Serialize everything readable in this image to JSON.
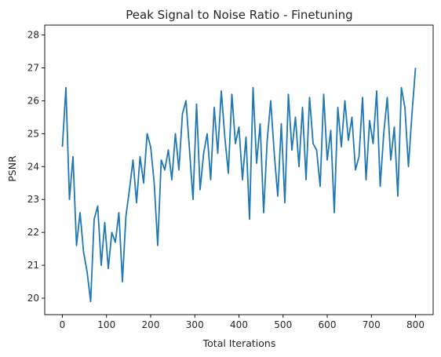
{
  "chart_data": {
    "type": "line",
    "title": "Peak Signal to Noise Ratio - Finetuning",
    "xlabel": "Total Iterations",
    "ylabel": "PSNR",
    "xlim": [
      -40,
      840
    ],
    "ylim": [
      19.5,
      28.3
    ],
    "xticks": [
      0,
      100,
      200,
      300,
      400,
      500,
      600,
      700,
      800
    ],
    "yticks": [
      20,
      21,
      22,
      23,
      24,
      25,
      26,
      27,
      28
    ],
    "grid": false,
    "line_color": "#1f77b4",
    "series": [
      {
        "x": [
          0,
          8,
          16,
          24,
          32,
          40,
          48,
          56,
          64,
          72,
          80,
          88,
          96,
          104,
          112,
          120,
          128,
          136,
          144,
          152,
          160,
          168,
          176,
          184,
          192,
          200,
          208,
          216,
          224,
          232,
          240,
          248,
          256,
          264,
          272,
          280,
          288,
          296,
          304,
          312,
          320,
          328,
          336,
          344,
          352,
          360,
          368,
          376,
          384,
          392,
          400,
          408,
          416,
          424,
          432,
          440,
          448,
          456,
          464,
          472,
          480,
          488,
          496,
          504,
          512,
          520,
          528,
          536,
          544,
          552,
          560,
          568,
          576,
          584,
          592,
          600,
          608,
          616,
          624,
          632,
          640,
          648,
          656,
          664,
          672,
          680,
          688,
          696,
          704,
          712,
          720,
          728,
          736,
          744,
          752,
          760,
          768,
          776,
          784,
          792,
          800
        ],
        "y": [
          24.6,
          26.4,
          23.0,
          24.3,
          21.6,
          22.6,
          21.4,
          20.8,
          19.9,
          22.4,
          22.8,
          21.0,
          22.3,
          20.9,
          22.0,
          21.7,
          22.6,
          20.5,
          22.5,
          23.3,
          24.2,
          22.9,
          24.3,
          23.5,
          25.0,
          24.6,
          23.5,
          21.6,
          24.2,
          23.9,
          24.5,
          23.6,
          25.0,
          23.9,
          25.6,
          26.0,
          24.5,
          23.0,
          25.9,
          23.3,
          24.4,
          25.0,
          23.6,
          25.8,
          24.4,
          26.3,
          24.9,
          23.8,
          26.2,
          24.7,
          25.2,
          23.6,
          24.9,
          22.4,
          26.4,
          24.1,
          25.3,
          22.6,
          24.8,
          26.0,
          24.4,
          23.1,
          25.3,
          22.9,
          26.2,
          24.5,
          25.5,
          24.0,
          25.8,
          23.6,
          26.1,
          24.7,
          24.5,
          23.4,
          26.2,
          24.2,
          25.1,
          22.6,
          25.8,
          24.6,
          26.0,
          24.8,
          25.5,
          23.9,
          24.3,
          26.1,
          23.6,
          25.4,
          24.7,
          26.3,
          23.4,
          25.0,
          26.1,
          24.2,
          25.2,
          23.1,
          26.4,
          25.8,
          24.0,
          25.6,
          27.0
        ]
      }
    ]
  }
}
